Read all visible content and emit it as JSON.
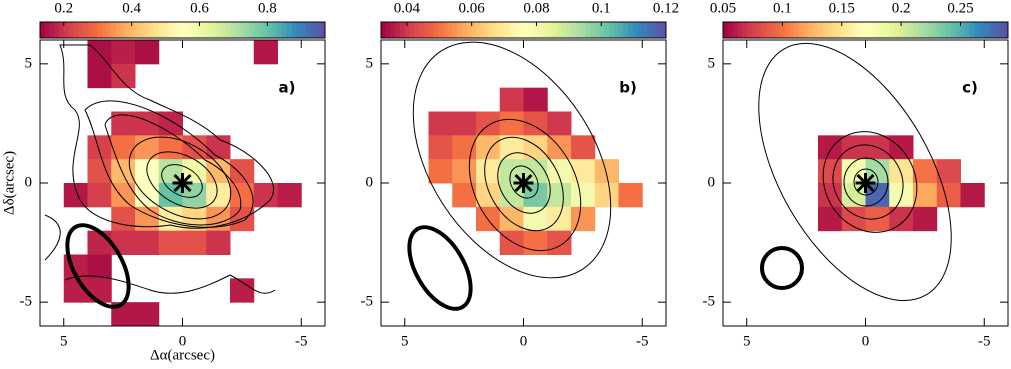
{
  "chart_data": [
    {
      "type": "heatmap",
      "panel_label": "a)",
      "x_label": "Δα(arcsec)",
      "y_label": "Δδ(arcsec)",
      "colormap": "Spectral",
      "xlim": [
        6,
        -6
      ],
      "ylim": [
        -6,
        6
      ],
      "xticks": [
        5,
        0,
        -5
      ],
      "yticks": [
        5,
        0,
        -5
      ],
      "clim": [
        0.13,
        0.97
      ],
      "cticks": [
        0.2,
        0.4,
        0.6,
        0.8
      ],
      "x": [
        5.5,
        4.5,
        3.5,
        2.5,
        1.5,
        0.5,
        -0.5,
        -1.5,
        -2.5,
        -3.5,
        -4.5,
        -5.5
      ],
      "y": [
        5.5,
        4.5,
        3.5,
        2.5,
        1.5,
        0.5,
        -0.5,
        -1.5,
        -2.5,
        -3.5,
        -4.5,
        -5.5
      ],
      "values": [
        [
          null,
          null,
          0.15,
          0.17,
          0.15,
          null,
          null,
          null,
          null,
          0.16,
          null,
          null
        ],
        [
          null,
          null,
          0.15,
          0.2,
          null,
          null,
          null,
          null,
          null,
          null,
          null,
          null
        ],
        [
          null,
          null,
          null,
          null,
          null,
          null,
          null,
          null,
          null,
          null,
          null,
          null
        ],
        [
          null,
          null,
          null,
          0.2,
          0.2,
          0.18,
          null,
          null,
          null,
          null,
          null,
          null
        ],
        [
          null,
          null,
          0.22,
          0.3,
          0.35,
          0.3,
          0.25,
          0.2,
          null,
          null,
          null,
          null
        ],
        [
          null,
          null,
          0.25,
          0.4,
          0.55,
          0.7,
          0.6,
          0.4,
          0.25,
          null,
          null,
          null
        ],
        [
          null,
          0.16,
          0.22,
          0.35,
          0.55,
          0.8,
          0.75,
          0.5,
          0.3,
          0.2,
          0.17,
          null
        ],
        [
          null,
          null,
          null,
          0.25,
          0.35,
          0.5,
          0.45,
          0.35,
          0.25,
          null,
          null,
          null
        ],
        [
          null,
          null,
          0.18,
          0.2,
          0.2,
          0.25,
          0.25,
          0.2,
          null,
          null,
          null,
          null
        ],
        [
          null,
          0.17,
          0.15,
          null,
          null,
          null,
          null,
          null,
          null,
          null,
          null,
          null
        ],
        [
          null,
          0.17,
          0.17,
          null,
          null,
          null,
          null,
          null,
          0.17,
          null,
          null,
          null
        ],
        [
          null,
          null,
          null,
          0.16,
          0.16,
          null,
          null,
          null,
          null,
          null,
          null,
          null
        ]
      ]
    },
    {
      "type": "heatmap",
      "panel_label": "b)",
      "colormap": "Spectral",
      "xlim": [
        6,
        -6
      ],
      "ylim": [
        -6,
        6
      ],
      "xticks": [
        5,
        0,
        -5
      ],
      "yticks": [
        5,
        0,
        -5
      ],
      "clim": [
        0.032,
        0.12
      ],
      "cticks": [
        0.04,
        0.06,
        0.08,
        0.1,
        0.12
      ],
      "x": [
        5.5,
        4.5,
        3.5,
        2.5,
        1.5,
        0.5,
        -0.5,
        -1.5,
        -2.5,
        -3.5,
        -4.5,
        -5.5
      ],
      "y": [
        5.5,
        4.5,
        3.5,
        2.5,
        1.5,
        0.5,
        -0.5,
        -1.5,
        -2.5,
        -3.5,
        -4.5,
        -5.5
      ],
      "values": [
        [
          null,
          null,
          null,
          null,
          null,
          null,
          null,
          null,
          null,
          null,
          null,
          null
        ],
        [
          null,
          null,
          null,
          null,
          null,
          null,
          null,
          null,
          null,
          null,
          null,
          null
        ],
        [
          null,
          null,
          null,
          null,
          null,
          0.04,
          0.035,
          null,
          null,
          null,
          null,
          null
        ],
        [
          null,
          null,
          0.04,
          0.04,
          0.045,
          0.05,
          0.045,
          0.04,
          null,
          null,
          null,
          null
        ],
        [
          null,
          null,
          0.045,
          0.05,
          0.06,
          0.07,
          0.065,
          0.055,
          0.045,
          null,
          null,
          null
        ],
        [
          null,
          null,
          0.05,
          0.055,
          0.07,
          0.09,
          0.09,
          0.08,
          0.07,
          0.06,
          null,
          null
        ],
        [
          null,
          null,
          null,
          0.05,
          0.065,
          0.09,
          0.1,
          0.09,
          0.08,
          0.065,
          0.05,
          null
        ],
        [
          null,
          null,
          null,
          null,
          0.05,
          0.06,
          0.08,
          0.07,
          0.055,
          null,
          null,
          null
        ],
        [
          null,
          null,
          null,
          null,
          null,
          0.045,
          0.05,
          0.045,
          null,
          null,
          null,
          null
        ],
        [
          null,
          null,
          null,
          null,
          null,
          null,
          null,
          null,
          null,
          null,
          null,
          null
        ],
        [
          null,
          null,
          null,
          null,
          null,
          null,
          null,
          null,
          null,
          null,
          null,
          null
        ],
        [
          null,
          null,
          null,
          null,
          null,
          null,
          null,
          null,
          null,
          null,
          null,
          null
        ]
      ]
    },
    {
      "type": "heatmap",
      "panel_label": "c)",
      "colormap": "Spectral",
      "xlim": [
        6,
        -6
      ],
      "ylim": [
        -6,
        6
      ],
      "xticks": [
        5,
        0,
        -5
      ],
      "yticks": [
        5,
        0,
        -5
      ],
      "clim": [
        0.05,
        0.29
      ],
      "cticks": [
        0.05,
        0.1,
        0.15,
        0.2,
        0.25
      ],
      "x": [
        5.5,
        4.5,
        3.5,
        2.5,
        1.5,
        0.5,
        -0.5,
        -1.5,
        -2.5,
        -3.5,
        -4.5,
        -5.5
      ],
      "y": [
        5.5,
        4.5,
        3.5,
        2.5,
        1.5,
        0.5,
        -0.5,
        -1.5,
        -2.5,
        -3.5,
        -4.5,
        -5.5
      ],
      "values": [
        [
          null,
          null,
          null,
          null,
          null,
          null,
          null,
          null,
          null,
          null,
          null,
          null
        ],
        [
          null,
          null,
          null,
          null,
          null,
          null,
          null,
          null,
          null,
          null,
          null,
          null
        ],
        [
          null,
          null,
          null,
          null,
          null,
          null,
          null,
          null,
          null,
          null,
          null,
          null
        ],
        [
          null,
          null,
          null,
          null,
          null,
          null,
          null,
          null,
          null,
          null,
          null,
          null
        ],
        [
          null,
          null,
          null,
          null,
          0.06,
          0.07,
          0.07,
          0.06,
          null,
          null,
          null,
          null
        ],
        [
          null,
          null,
          null,
          null,
          0.08,
          0.18,
          0.22,
          0.15,
          0.1,
          0.08,
          null,
          null
        ],
        [
          null,
          null,
          null,
          null,
          0.07,
          0.2,
          0.28,
          0.18,
          0.12,
          0.09,
          0.06,
          null
        ],
        [
          null,
          null,
          null,
          null,
          0.06,
          0.08,
          0.09,
          0.07,
          0.06,
          null,
          null,
          null
        ],
        [
          null,
          null,
          null,
          null,
          null,
          null,
          null,
          null,
          null,
          null,
          null,
          null
        ],
        [
          null,
          null,
          null,
          null,
          null,
          null,
          null,
          null,
          null,
          null,
          null,
          null
        ],
        [
          null,
          null,
          null,
          null,
          null,
          null,
          null,
          null,
          null,
          null,
          null,
          null
        ],
        [
          null,
          null,
          null,
          null,
          null,
          null,
          null,
          null,
          null,
          null,
          null,
          null
        ]
      ]
    }
  ]
}
